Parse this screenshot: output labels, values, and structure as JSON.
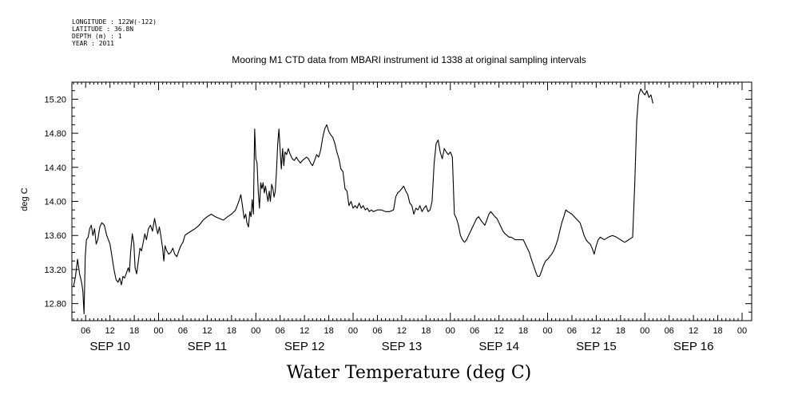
{
  "meta": {
    "longitude": "LONGITUDE : 122W(-122)",
    "latitude": "LATITUDE : 36.8N",
    "depth": "DEPTH (m) : 1",
    "year": "YEAR : 2011"
  },
  "chart_data": {
    "type": "line",
    "title": "Mooring M1 CTD data from MBARI instrument id 1338 at original sampling intervals",
    "bottom_title": "Water Temperature (deg C)",
    "ylabel": "deg C",
    "xlabel": "",
    "x_unit": "hours since SEP 09 00:00",
    "xlim": [
      3,
      168
    ],
    "ylim": [
      12.6,
      15.4
    ],
    "grid": false,
    "y_ticks": [
      "12.80",
      "13.20",
      "13.60",
      "14.00",
      "14.40",
      "14.80",
      "15.20"
    ],
    "x_ticks": [
      {
        "h": 6,
        "label": "06"
      },
      {
        "h": 12,
        "label": "12"
      },
      {
        "h": 18,
        "label": "18"
      },
      {
        "h": 24,
        "label": "00"
      },
      {
        "h": 30,
        "label": "06"
      },
      {
        "h": 36,
        "label": "12"
      },
      {
        "h": 42,
        "label": "18"
      },
      {
        "h": 48,
        "label": "00"
      },
      {
        "h": 54,
        "label": "06"
      },
      {
        "h": 60,
        "label": "12"
      },
      {
        "h": 66,
        "label": "18"
      },
      {
        "h": 72,
        "label": "00"
      },
      {
        "h": 78,
        "label": "06"
      },
      {
        "h": 84,
        "label": "12"
      },
      {
        "h": 90,
        "label": "18"
      },
      {
        "h": 96,
        "label": "00"
      },
      {
        "h": 102,
        "label": "06"
      },
      {
        "h": 108,
        "label": "12"
      },
      {
        "h": 114,
        "label": "18"
      },
      {
        "h": 120,
        "label": "00"
      },
      {
        "h": 126,
        "label": "06"
      },
      {
        "h": 132,
        "label": "12"
      },
      {
        "h": 138,
        "label": "18"
      },
      {
        "h": 144,
        "label": "00"
      },
      {
        "h": 150,
        "label": "06"
      },
      {
        "h": 156,
        "label": "12"
      },
      {
        "h": 162,
        "label": "18"
      },
      {
        "h": 168,
        "label": "00"
      }
    ],
    "date_labels": [
      {
        "h": 12,
        "label": "SEP 10"
      },
      {
        "h": 36,
        "label": "SEP 11"
      },
      {
        "h": 60,
        "label": "SEP 12"
      },
      {
        "h": 84,
        "label": "SEP 13"
      },
      {
        "h": 108,
        "label": "SEP 14"
      },
      {
        "h": 132,
        "label": "SEP 15"
      },
      {
        "h": 156,
        "label": "SEP 16"
      }
    ],
    "series": [
      {
        "color": "#000000",
        "points": [
          [
            3.0,
            13.0
          ],
          [
            3.5,
            13.12
          ],
          [
            4.0,
            13.32
          ],
          [
            4.5,
            13.15
          ],
          [
            5.0,
            13.05
          ],
          [
            5.3,
            12.95
          ],
          [
            5.6,
            12.68
          ],
          [
            5.9,
            13.35
          ],
          [
            6.2,
            13.55
          ],
          [
            6.6,
            13.58
          ],
          [
            7.0,
            13.68
          ],
          [
            7.4,
            13.72
          ],
          [
            7.8,
            13.6
          ],
          [
            8.2,
            13.68
          ],
          [
            8.6,
            13.5
          ],
          [
            9.0,
            13.55
          ],
          [
            9.5,
            13.7
          ],
          [
            10.0,
            13.75
          ],
          [
            10.6,
            13.72
          ],
          [
            11.2,
            13.6
          ],
          [
            12.0,
            13.5
          ],
          [
            12.5,
            13.35
          ],
          [
            13.0,
            13.2
          ],
          [
            13.5,
            13.08
          ],
          [
            14.0,
            13.05
          ],
          [
            14.4,
            13.1
          ],
          [
            14.8,
            13.02
          ],
          [
            15.2,
            13.12
          ],
          [
            15.6,
            13.1
          ],
          [
            16.0,
            13.15
          ],
          [
            16.5,
            13.22
          ],
          [
            16.8,
            13.17
          ],
          [
            17.1,
            13.4
          ],
          [
            17.5,
            13.62
          ],
          [
            17.9,
            13.5
          ],
          [
            18.2,
            13.22
          ],
          [
            18.6,
            13.15
          ],
          [
            19.0,
            13.3
          ],
          [
            19.4,
            13.45
          ],
          [
            19.8,
            13.42
          ],
          [
            20.2,
            13.52
          ],
          [
            20.6,
            13.62
          ],
          [
            21.0,
            13.55
          ],
          [
            21.5,
            13.68
          ],
          [
            22.0,
            13.72
          ],
          [
            22.5,
            13.65
          ],
          [
            23.0,
            13.8
          ],
          [
            23.4,
            13.7
          ],
          [
            23.8,
            13.62
          ],
          [
            24.2,
            13.7
          ],
          [
            24.6,
            13.58
          ],
          [
            25.0,
            13.45
          ],
          [
            25.3,
            13.3
          ],
          [
            25.6,
            13.48
          ],
          [
            26.0,
            13.42
          ],
          [
            26.5,
            13.38
          ],
          [
            27.0,
            13.4
          ],
          [
            27.5,
            13.45
          ],
          [
            28.0,
            13.38
          ],
          [
            28.5,
            13.35
          ],
          [
            29.0,
            13.42
          ],
          [
            29.5,
            13.48
          ],
          [
            30.0,
            13.52
          ],
          [
            30.5,
            13.6
          ],
          [
            31.0,
            13.62
          ],
          [
            32.0,
            13.65
          ],
          [
            33.0,
            13.68
          ],
          [
            34.0,
            13.72
          ],
          [
            35.0,
            13.78
          ],
          [
            36.0,
            13.82
          ],
          [
            37.0,
            13.85
          ],
          [
            38.0,
            13.82
          ],
          [
            39.0,
            13.8
          ],
          [
            40.0,
            13.78
          ],
          [
            41.0,
            13.82
          ],
          [
            42.0,
            13.85
          ],
          [
            43.0,
            13.9
          ],
          [
            43.8,
            14.0
          ],
          [
            44.3,
            14.08
          ],
          [
            44.7,
            13.95
          ],
          [
            45.1,
            13.8
          ],
          [
            45.5,
            13.85
          ],
          [
            45.8,
            13.75
          ],
          [
            46.2,
            13.7
          ],
          [
            46.5,
            13.88
          ],
          [
            46.8,
            13.82
          ],
          [
            47.1,
            14.02
          ],
          [
            47.4,
            13.85
          ],
          [
            47.7,
            14.85
          ],
          [
            48.0,
            14.5
          ],
          [
            48.3,
            14.45
          ],
          [
            48.6,
            14.12
          ],
          [
            48.9,
            13.92
          ],
          [
            49.2,
            14.22
          ],
          [
            49.5,
            14.15
          ],
          [
            49.8,
            14.22
          ],
          [
            50.1,
            14.1
          ],
          [
            50.4,
            14.18
          ],
          [
            50.7,
            14.08
          ],
          [
            51.0,
            14.0
          ],
          [
            51.3,
            14.12
          ],
          [
            51.6,
            14.0
          ],
          [
            51.9,
            14.2
          ],
          [
            52.2,
            14.15
          ],
          [
            52.5,
            14.05
          ],
          [
            52.8,
            14.12
          ],
          [
            53.1,
            14.35
          ],
          [
            53.4,
            14.68
          ],
          [
            53.7,
            14.85
          ],
          [
            54.0,
            14.6
          ],
          [
            54.3,
            14.38
          ],
          [
            54.6,
            14.62
          ],
          [
            54.9,
            14.42
          ],
          [
            55.2,
            14.58
          ],
          [
            55.6,
            14.55
          ],
          [
            56.0,
            14.62
          ],
          [
            56.5,
            14.55
          ],
          [
            57.0,
            14.5
          ],
          [
            57.5,
            14.48
          ],
          [
            58.0,
            14.52
          ],
          [
            58.5,
            14.48
          ],
          [
            59.0,
            14.45
          ],
          [
            59.5,
            14.48
          ],
          [
            60.0,
            14.5
          ],
          [
            60.5,
            14.52
          ],
          [
            61.0,
            14.5
          ],
          [
            61.5,
            14.45
          ],
          [
            62.0,
            14.42
          ],
          [
            62.5,
            14.48
          ],
          [
            63.0,
            14.55
          ],
          [
            63.5,
            14.52
          ],
          [
            64.0,
            14.6
          ],
          [
            64.5,
            14.75
          ],
          [
            65.0,
            14.85
          ],
          [
            65.5,
            14.9
          ],
          [
            66.0,
            14.82
          ],
          [
            66.5,
            14.78
          ],
          [
            67.0,
            14.75
          ],
          [
            67.5,
            14.68
          ],
          [
            68.0,
            14.58
          ],
          [
            68.5,
            14.5
          ],
          [
            69.0,
            14.38
          ],
          [
            69.5,
            14.35
          ],
          [
            70.0,
            14.15
          ],
          [
            70.5,
            14.12
          ],
          [
            71.0,
            13.95
          ],
          [
            71.5,
            14.0
          ],
          [
            72.0,
            13.92
          ],
          [
            72.5,
            13.95
          ],
          [
            73.0,
            13.92
          ],
          [
            73.5,
            13.98
          ],
          [
            74.0,
            13.92
          ],
          [
            74.5,
            13.95
          ],
          [
            75.0,
            13.9
          ],
          [
            75.5,
            13.92
          ],
          [
            76.0,
            13.88
          ],
          [
            76.5,
            13.9
          ],
          [
            77.0,
            13.88
          ],
          [
            78.0,
            13.9
          ],
          [
            79.0,
            13.9
          ],
          [
            80.0,
            13.88
          ],
          [
            81.0,
            13.88
          ],
          [
            82.0,
            13.9
          ],
          [
            82.5,
            14.05
          ],
          [
            83.0,
            14.1
          ],
          [
            83.5,
            14.12
          ],
          [
            84.0,
            14.15
          ],
          [
            84.5,
            14.18
          ],
          [
            85.0,
            14.12
          ],
          [
            85.5,
            14.08
          ],
          [
            86.0,
            13.98
          ],
          [
            86.5,
            13.95
          ],
          [
            87.0,
            13.85
          ],
          [
            87.5,
            13.92
          ],
          [
            88.0,
            13.9
          ],
          [
            88.5,
            13.95
          ],
          [
            89.0,
            13.88
          ],
          [
            89.5,
            13.92
          ],
          [
            90.0,
            13.95
          ],
          [
            90.5,
            13.88
          ],
          [
            91.0,
            13.9
          ],
          [
            91.5,
            14.0
          ],
          [
            92.0,
            14.45
          ],
          [
            92.5,
            14.68
          ],
          [
            93.0,
            14.72
          ],
          [
            93.5,
            14.58
          ],
          [
            94.0,
            14.5
          ],
          [
            94.5,
            14.62
          ],
          [
            95.0,
            14.58
          ],
          [
            95.5,
            14.55
          ],
          [
            96.0,
            14.58
          ],
          [
            96.5,
            14.52
          ],
          [
            97.0,
            13.85
          ],
          [
            97.5,
            13.8
          ],
          [
            98.0,
            13.72
          ],
          [
            98.5,
            13.6
          ],
          [
            99.0,
            13.55
          ],
          [
            99.5,
            13.52
          ],
          [
            100.0,
            13.55
          ],
          [
            100.5,
            13.6
          ],
          [
            101.0,
            13.65
          ],
          [
            101.5,
            13.7
          ],
          [
            102.0,
            13.75
          ],
          [
            102.5,
            13.8
          ],
          [
            103.0,
            13.82
          ],
          [
            103.5,
            13.78
          ],
          [
            104.0,
            13.75
          ],
          [
            104.5,
            13.72
          ],
          [
            105.0,
            13.78
          ],
          [
            105.5,
            13.85
          ],
          [
            106.0,
            13.88
          ],
          [
            106.5,
            13.85
          ],
          [
            107.0,
            13.82
          ],
          [
            107.5,
            13.8
          ],
          [
            108.0,
            13.75
          ],
          [
            108.5,
            13.7
          ],
          [
            109.0,
            13.65
          ],
          [
            109.5,
            13.62
          ],
          [
            110.0,
            13.6
          ],
          [
            110.5,
            13.58
          ],
          [
            111.0,
            13.58
          ],
          [
            112.0,
            13.55
          ],
          [
            113.0,
            13.55
          ],
          [
            114.0,
            13.55
          ],
          [
            114.5,
            13.5
          ],
          [
            115.0,
            13.45
          ],
          [
            115.5,
            13.4
          ],
          [
            116.0,
            13.32
          ],
          [
            116.5,
            13.25
          ],
          [
            117.0,
            13.18
          ],
          [
            117.5,
            13.12
          ],
          [
            118.0,
            13.12
          ],
          [
            118.5,
            13.18
          ],
          [
            119.0,
            13.25
          ],
          [
            119.5,
            13.3
          ],
          [
            120.0,
            13.32
          ],
          [
            120.5,
            13.35
          ],
          [
            121.0,
            13.38
          ],
          [
            121.5,
            13.42
          ],
          [
            122.0,
            13.48
          ],
          [
            122.5,
            13.55
          ],
          [
            123.0,
            13.65
          ],
          [
            123.5,
            13.75
          ],
          [
            124.0,
            13.82
          ],
          [
            124.5,
            13.9
          ],
          [
            125.0,
            13.88
          ],
          [
            126.0,
            13.85
          ],
          [
            127.0,
            13.8
          ],
          [
            128.0,
            13.75
          ],
          [
            128.5,
            13.68
          ],
          [
            129.0,
            13.6
          ],
          [
            129.5,
            13.55
          ],
          [
            130.0,
            13.52
          ],
          [
            130.5,
            13.5
          ],
          [
            131.0,
            13.45
          ],
          [
            131.5,
            13.38
          ],
          [
            132.0,
            13.48
          ],
          [
            132.5,
            13.55
          ],
          [
            133.0,
            13.58
          ],
          [
            134.0,
            13.55
          ],
          [
            135.0,
            13.58
          ],
          [
            136.0,
            13.6
          ],
          [
            137.0,
            13.58
          ],
          [
            138.0,
            13.55
          ],
          [
            139.0,
            13.52
          ],
          [
            140.0,
            13.55
          ],
          [
            141.0,
            13.58
          ],
          [
            141.5,
            14.2
          ],
          [
            142.0,
            14.95
          ],
          [
            142.5,
            15.25
          ],
          [
            143.0,
            15.32
          ],
          [
            143.5,
            15.28
          ],
          [
            144.0,
            15.25
          ],
          [
            144.5,
            15.3
          ],
          [
            145.0,
            15.22
          ],
          [
            145.5,
            15.25
          ],
          [
            146.0,
            15.15
          ]
        ]
      }
    ]
  }
}
